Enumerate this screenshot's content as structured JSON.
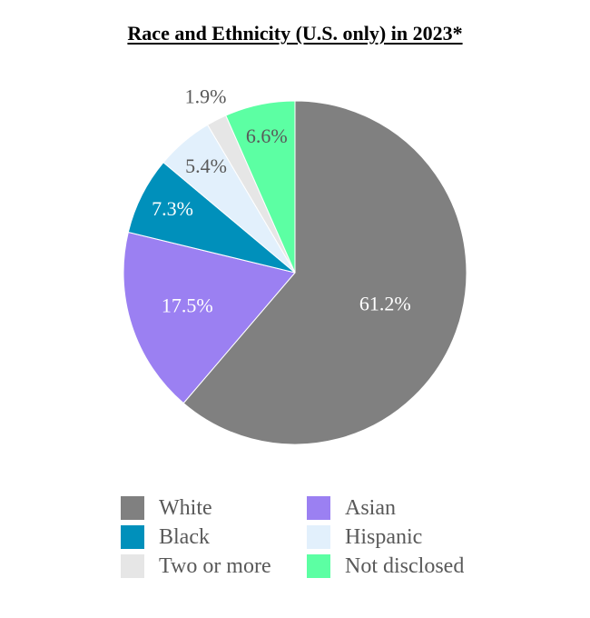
{
  "chart_data": {
    "type": "pie",
    "title": "Race and Ethnicity (U.S. only) in 2023*",
    "slices": [
      {
        "name": "White",
        "value": 61.2,
        "label": "61.2%",
        "color": "#808080",
        "label_color": "#ffffff"
      },
      {
        "name": "Asian",
        "value": 17.5,
        "label": "17.5%",
        "color": "#9b80f2",
        "label_color": "#ffffff"
      },
      {
        "name": "Black",
        "value": 7.3,
        "label": "7.3%",
        "color": "#0090bb",
        "label_color": "#ffffff"
      },
      {
        "name": "Hispanic",
        "value": 5.4,
        "label": "5.4%",
        "color": "#e2f0fc",
        "label_color": "#595959"
      },
      {
        "name": "Two or more",
        "value": 1.9,
        "label": "1.9%",
        "color": "#e6e6e6",
        "label_color": "#595959"
      },
      {
        "name": "Not disclosed",
        "value": 6.6,
        "label": "6.6%",
        "color": "#5cffa3",
        "label_color": "#595959"
      }
    ],
    "legend": {
      "position": "bottom",
      "entries": [
        "White",
        "Asian",
        "Black",
        "Hispanic",
        "Two or more",
        "Not disclosed"
      ]
    }
  }
}
